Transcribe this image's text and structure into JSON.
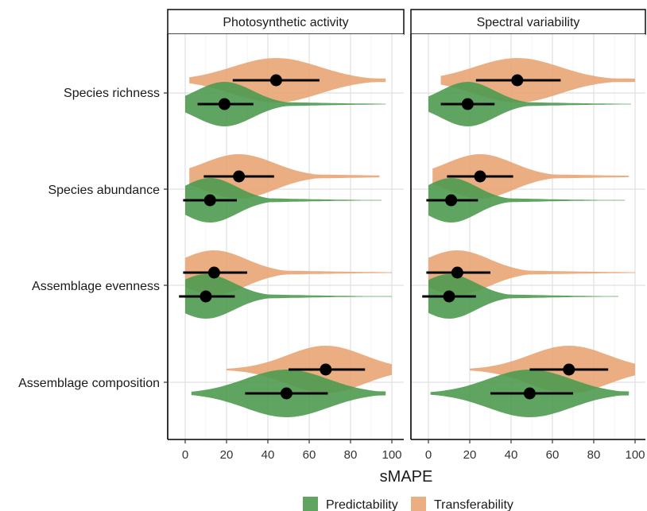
{
  "chart_data": {
    "type": "violin",
    "xlabel": "sMAPE",
    "ylabel": "",
    "xlim": [
      0,
      100
    ],
    "xticks": [
      "0",
      "20",
      "40",
      "60",
      "80",
      "100"
    ],
    "facets": [
      "Photosynthetic activity",
      "Spectral variability"
    ],
    "rows": [
      "Species richness",
      "Species abundance",
      "Assemblage evenness",
      "Assemblage composition"
    ],
    "series": [
      {
        "name": "Predictability",
        "color": "#4e9a4f"
      },
      {
        "name": "Transferability",
        "color": "#e8a574"
      }
    ],
    "legend": "bottom",
    "grid": true,
    "panels": [
      {
        "facet": "Photosynthetic activity",
        "rows": [
          {
            "row": "Species richness",
            "Transferability": {
              "mean": 44,
              "lo": 23,
              "hi": 65,
              "min": 2,
              "max": 97
            },
            "Predictability": {
              "mean": 19,
              "lo": 6,
              "hi": 33,
              "min": 0,
              "max": 97
            }
          },
          {
            "row": "Species abundance",
            "Transferability": {
              "mean": 26,
              "lo": 9,
              "hi": 43,
              "min": 2,
              "max": 94
            },
            "Predictability": {
              "mean": 12,
              "lo": -1,
              "hi": 25,
              "min": 0,
              "max": 95
            }
          },
          {
            "row": "Assemblage evenness",
            "Transferability": {
              "mean": 14,
              "lo": -1,
              "hi": 30,
              "min": 0,
              "max": 100
            },
            "Predictability": {
              "mean": 10,
              "lo": -3,
              "hi": 24,
              "min": 0,
              "max": 100
            }
          },
          {
            "row": "Assemblage composition",
            "Transferability": {
              "mean": 68,
              "lo": 50,
              "hi": 87,
              "min": 20,
              "max": 100
            },
            "Predictability": {
              "mean": 49,
              "lo": 29,
              "hi": 69,
              "min": 3,
              "max": 97
            }
          }
        ]
      },
      {
        "facet": "Spectral variability",
        "rows": [
          {
            "row": "Species richness",
            "Transferability": {
              "mean": 43,
              "lo": 23,
              "hi": 64,
              "min": 6,
              "max": 100
            },
            "Predictability": {
              "mean": 19,
              "lo": 6,
              "hi": 32,
              "min": 0,
              "max": 98
            }
          },
          {
            "row": "Species abundance",
            "Transferability": {
              "mean": 25,
              "lo": 9,
              "hi": 41,
              "min": 2,
              "max": 97
            },
            "Predictability": {
              "mean": 11,
              "lo": -1,
              "hi": 24,
              "min": 0,
              "max": 95
            }
          },
          {
            "row": "Assemblage evenness",
            "Transferability": {
              "mean": 14,
              "lo": -1,
              "hi": 30,
              "min": 0,
              "max": 100
            },
            "Predictability": {
              "mean": 10,
              "lo": -3,
              "hi": 23,
              "min": 0,
              "max": 92
            }
          },
          {
            "row": "Assemblage composition",
            "Transferability": {
              "mean": 68,
              "lo": 49,
              "hi": 87,
              "min": 20,
              "max": 100
            },
            "Predictability": {
              "mean": 49,
              "lo": 30,
              "hi": 70,
              "min": 1,
              "max": 97
            }
          }
        ]
      }
    ]
  }
}
